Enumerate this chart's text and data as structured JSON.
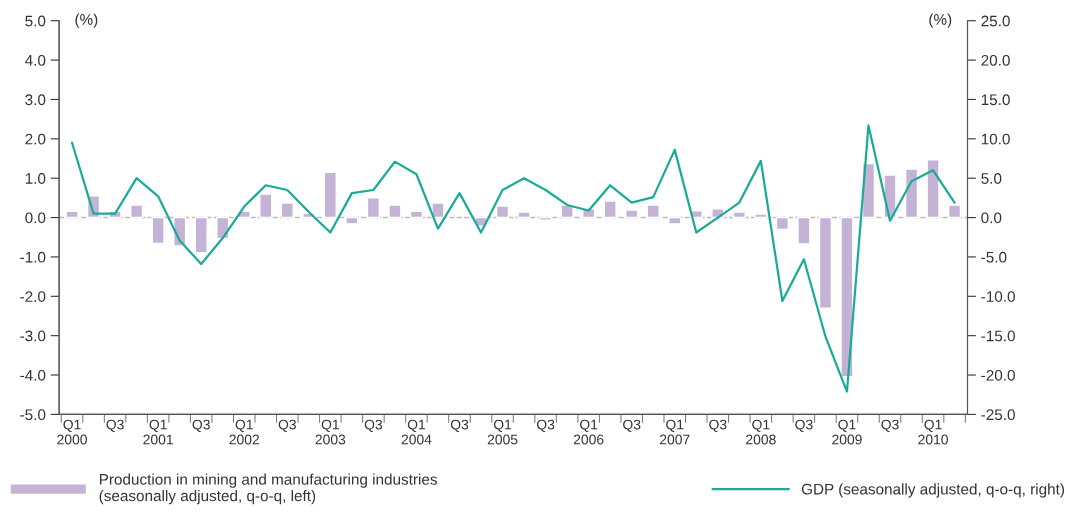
{
  "chart_data": {
    "type": "bar",
    "categories": [
      "Q1\n2000",
      null,
      "Q3",
      null,
      "Q1\n2001",
      null,
      "Q3",
      null,
      "Q1\n2002",
      null,
      "Q3",
      null,
      "Q1\n2003",
      null,
      "Q3",
      null,
      "Q1\n2004",
      null,
      "Q3",
      null,
      "Q1\n2005",
      null,
      "Q3",
      null,
      "Q1\n2006",
      null,
      "Q3",
      null,
      "Q1\n2007",
      null,
      "Q3",
      null,
      "Q1\n2008",
      null,
      "Q3",
      null,
      "Q1\n2009",
      null,
      "Q3",
      null,
      "Q1\n2010",
      null
    ],
    "series": [
      {
        "name": "Production in mining and manufacturing industries\n(seasonally adjusted, q-o-q, left)",
        "color": "#c5b3d6",
        "values": [
          0.16,
          0.55,
          0.16,
          0.32,
          -0.66,
          -0.72,
          -0.89,
          -0.53,
          0.16,
          0.6,
          0.37,
          0.11,
          1.15,
          -0.16,
          0.5,
          0.32,
          0.16,
          0.37,
          null,
          -0.22,
          0.29,
          0.14,
          -0.07,
          0.32,
          0.22,
          0.42,
          0.19,
          0.32,
          -0.16,
          0.17,
          0.22,
          0.14,
          0.09,
          -0.3,
          -0.67,
          -2.3,
          -4.04,
          1.37,
          1.08,
          1.23,
          1.47,
          0.32
        ]
      },
      {
        "name": "GDP (seasonally adjusted, q-o-q, right)",
        "type": "line",
        "axis": "y2",
        "color": "#1aab98",
        "values": [
          9.5,
          0.5,
          0.5,
          5.0,
          2.7,
          -2.9,
          -5.9,
          -2.6,
          1.4,
          4.1,
          3.5,
          0.7,
          -1.9,
          3.1,
          3.5,
          7.1,
          5.5,
          -1.4,
          3.1,
          -1.9,
          3.5,
          5.0,
          3.5,
          1.6,
          0.9,
          4.1,
          1.9,
          2.6,
          8.6,
          -1.9,
          0.0,
          1.9,
          7.2,
          -10.6,
          -5.3,
          -15.1,
          -22.1,
          11.7,
          -0.4,
          4.6,
          6.0,
          1.9
        ]
      }
    ],
    "ylabel": "(%)",
    "y2label": "(%)",
    "ylim": [
      -5.0,
      5.0
    ],
    "yticks": [
      {
        "value": -5,
        "label": "-5.0"
      },
      {
        "value": -4,
        "label": "-4.0"
      },
      {
        "value": -3,
        "label": "-3.0"
      },
      {
        "value": -2,
        "label": "-2.0"
      },
      {
        "value": -1,
        "label": "-1.0"
      },
      {
        "value": 0,
        "label": "0.0"
      },
      {
        "value": 1,
        "label": "1.0"
      },
      {
        "value": 2,
        "label": "2.0"
      },
      {
        "value": 3,
        "label": "3.0"
      },
      {
        "value": 4,
        "label": "4.0"
      },
      {
        "value": 5,
        "label": "5.0"
      }
    ],
    "y2lim": [
      -25.0,
      25.0
    ],
    "y2ticks": [
      {
        "value": -25,
        "label": "-25.0"
      },
      {
        "value": -20,
        "label": "-20.0"
      },
      {
        "value": -15,
        "label": "-15.0"
      },
      {
        "value": -10,
        "label": "-10.0"
      },
      {
        "value": -5,
        "label": "-5.0"
      },
      {
        "value": 0,
        "label": "0.0"
      },
      {
        "value": 5,
        "label": "5.0"
      },
      {
        "value": 10,
        "label": "10.0"
      },
      {
        "value": 15,
        "label": "15.0"
      },
      {
        "value": 20,
        "label": "20.0"
      },
      {
        "value": 25,
        "label": "25.0"
      }
    ],
    "ref_lines": [
      {
        "axis": "y",
        "value": 0,
        "color": "#bbbbbb",
        "line_style": "dashed"
      }
    ],
    "grid": false,
    "legend": "bottom",
    "marker": "none",
    "line_style": "solid"
  }
}
